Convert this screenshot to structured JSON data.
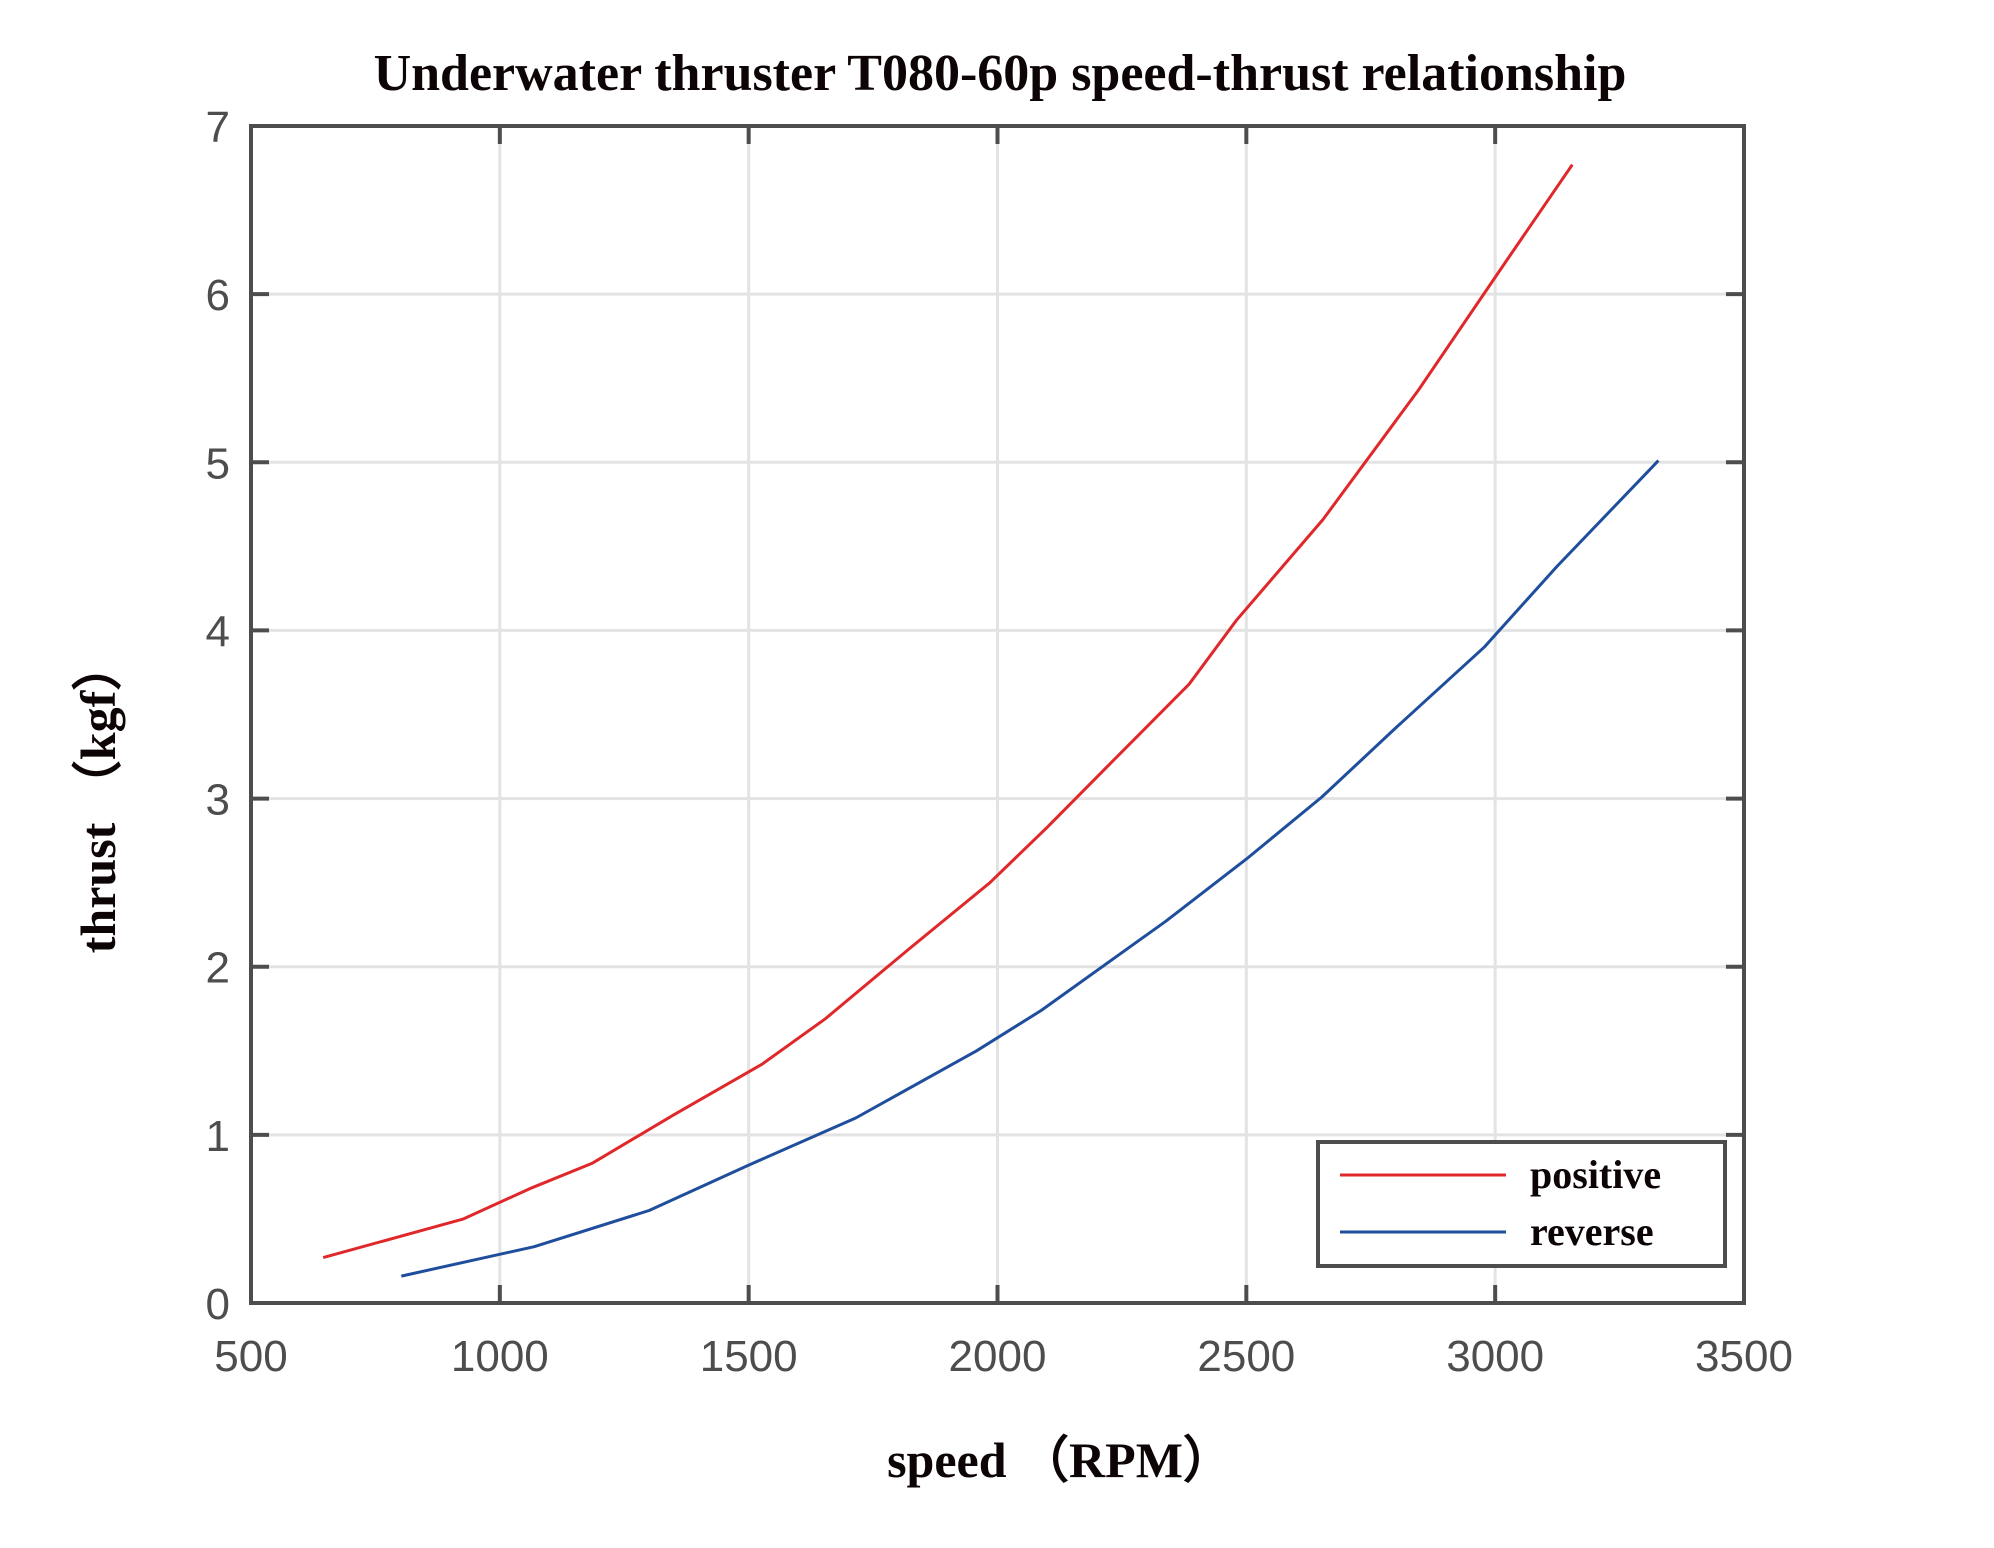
{
  "chart_data": {
    "type": "line",
    "title": "Underwater thruster T080-60p speed-thrust relationship",
    "xlabel": "speed （RPM）",
    "ylabel": "thrust （kgf）",
    "xlim": [
      500,
      3500
    ],
    "ylim": [
      0,
      7
    ],
    "xticks": [
      500,
      1000,
      1500,
      2000,
      2500,
      3000,
      3500
    ],
    "yticks": [
      0,
      1,
      2,
      3,
      4,
      5,
      6,
      7
    ],
    "xtick_labels": [
      "500",
      "1000",
      "1500",
      "2000",
      "2500",
      "3000",
      "3500"
    ],
    "ytick_labels": [
      "0",
      "1",
      "2",
      "3",
      "4",
      "5",
      "6",
      "7"
    ],
    "grid": true,
    "legend_position": "bottom-right",
    "series": [
      {
        "name": "positive",
        "color": "#e0282a",
        "x": [
          645,
          927,
          1060,
          1185,
          1350,
          1527,
          1654,
          1820,
          1985,
          2100,
          2227,
          2385,
          2480,
          2654,
          2846,
          3023,
          3155
        ],
        "y": [
          0.27,
          0.5,
          0.68,
          0.83,
          1.12,
          1.42,
          1.69,
          2.1,
          2.5,
          2.83,
          3.21,
          3.68,
          4.06,
          4.66,
          5.43,
          6.2,
          6.77
        ]
      },
      {
        "name": "reverse",
        "color": "#1f4e9c",
        "x": [
          802,
          1069,
          1300,
          1500,
          1715,
          1958,
          2088,
          2338,
          2500,
          2652,
          2800,
          2978,
          3124,
          3328
        ],
        "y": [
          0.16,
          0.335,
          0.55,
          0.82,
          1.1,
          1.5,
          1.74,
          2.27,
          2.64,
          3.01,
          3.42,
          3.9,
          4.38,
          5.01
        ]
      }
    ]
  }
}
